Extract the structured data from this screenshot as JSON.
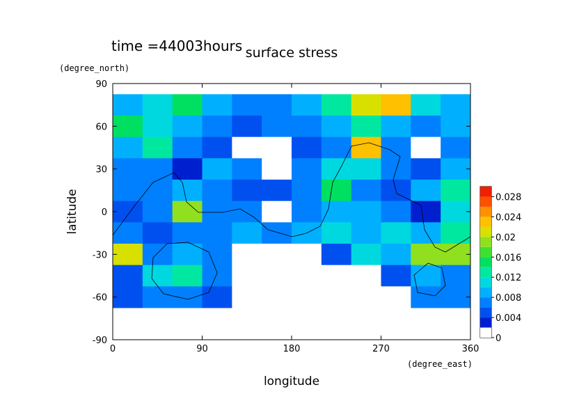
{
  "chart_data": {
    "type": "contour",
    "title": "surface stress",
    "subtitle": "time =44003hours",
    "x_label": "longitude",
    "y_label": "latitude",
    "x_unit": "(degree_east)",
    "y_unit": "(degree_north)",
    "x": [
      15,
      45,
      75,
      105,
      135,
      165,
      195,
      225,
      255,
      285,
      315,
      345
    ],
    "y": [
      75,
      60,
      45,
      30,
      15,
      0,
      -15,
      -30,
      -45,
      -60
    ],
    "z": [
      [
        0.008,
        0.01,
        0.014,
        0.008,
        0.006,
        0.006,
        0.008,
        0.012,
        0.02,
        0.022,
        0.01,
        0.008
      ],
      [
        0.014,
        0.01,
        0.008,
        0.006,
        0.005,
        0.006,
        0.006,
        0.008,
        0.012,
        0.008,
        0.006,
        0.008
      ],
      [
        0.008,
        0.012,
        0.006,
        0.004,
        0,
        0,
        0.004,
        0.006,
        0.022,
        0.006,
        0,
        0.006
      ],
      [
        0.006,
        0.006,
        0.002,
        0.008,
        0.006,
        0,
        0.006,
        0.01,
        0.01,
        0.006,
        0.004,
        0.008
      ],
      [
        0.006,
        0.006,
        0.008,
        0.006,
        0.004,
        0.004,
        0.006,
        0.014,
        0.006,
        0.004,
        0.008,
        0.012
      ],
      [
        0.004,
        0.006,
        0.018,
        0.006,
        0.006,
        0,
        0.006,
        0.008,
        0.008,
        0.006,
        0.002,
        0.01
      ],
      [
        0.006,
        0.004,
        0.006,
        0.006,
        0.008,
        0.006,
        0.008,
        0.01,
        0.008,
        0.01,
        0.008,
        0.012
      ],
      [
        0.02,
        0.006,
        0.008,
        0.006,
        0,
        0,
        0,
        0.004,
        0.01,
        0.008,
        0.018,
        0.018
      ],
      [
        0.004,
        0.01,
        0.012,
        0.006,
        0,
        0,
        0,
        0,
        0,
        0.004,
        0.008,
        0.006
      ],
      [
        0.004,
        0.006,
        0.006,
        0.004,
        0,
        0,
        0,
        0,
        0,
        0,
        0.006,
        0.006
      ]
    ],
    "xlim": [
      0,
      360
    ],
    "ylim": [
      -90,
      90
    ],
    "xticks": [
      0,
      90,
      180,
      270,
      360
    ],
    "yticks": [
      -90,
      -60,
      -30,
      0,
      30,
      60,
      90
    ],
    "levels": [
      0,
      0.002,
      0.004,
      0.006,
      0.008,
      0.01,
      0.012,
      0.014,
      0.016,
      0.018,
      0.02,
      0.022,
      0.024,
      0.026,
      0.028,
      0.03
    ],
    "colors": [
      "#ffffff",
      "#0020d0",
      "#0050f0",
      "#0080ff",
      "#00b0ff",
      "#00d8e0",
      "#00e8a0",
      "#00e060",
      "#40e030",
      "#90e020",
      "#d8e000",
      "#ffc000",
      "#ff9000",
      "#ff5000",
      "#f02000"
    ],
    "clim": [
      0,
      0.03
    ],
    "cticks": [
      0,
      0.004,
      0.008,
      0.012,
      0.016,
      0.02,
      0.024,
      0.028
    ]
  }
}
